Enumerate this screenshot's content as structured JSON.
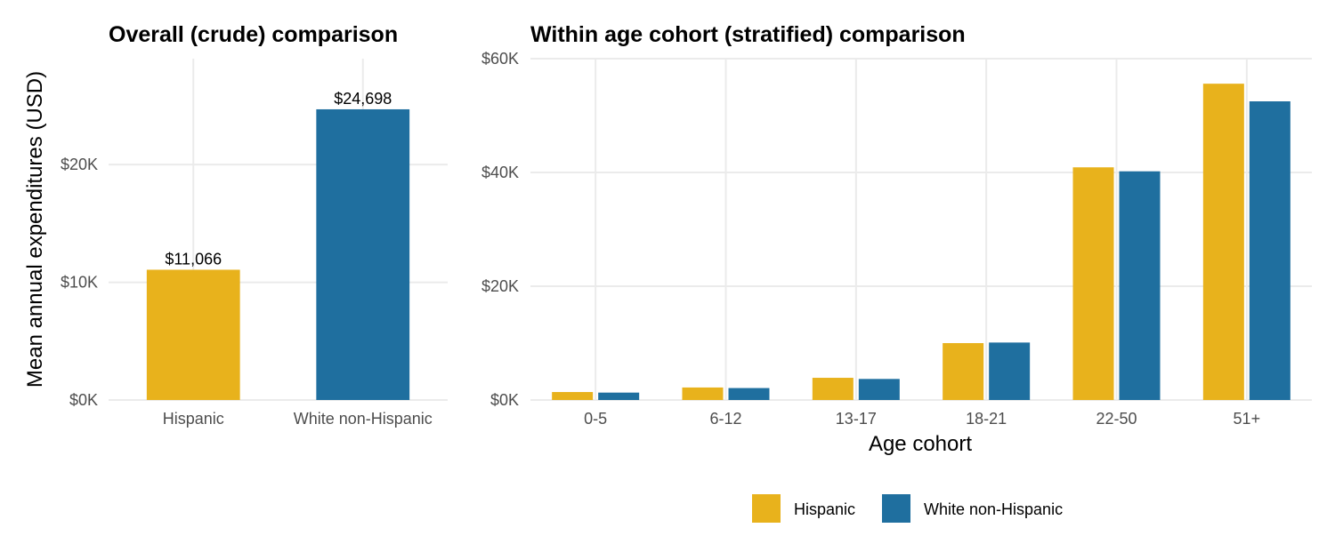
{
  "y_axis_title": "Mean annual expenditures (USD)",
  "colors": {
    "hispanic": "#E8B21C",
    "white_non_hispanic": "#1F6F9F"
  },
  "chart_data": [
    {
      "type": "bar",
      "title": "Overall (crude) comparison",
      "categories": [
        "Hispanic",
        "White non-Hispanic"
      ],
      "values": [
        11066,
        24698
      ],
      "data_labels": [
        "$11,066",
        "$24,698"
      ],
      "ylim": [
        0,
        29000
      ],
      "y_ticks": [
        0,
        10000,
        20000
      ],
      "y_tick_labels": [
        "$0K",
        "$10K",
        "$20K"
      ],
      "grid": true
    },
    {
      "type": "bar",
      "title": "Within age cohort (stratified) comparison",
      "xlabel": "Age cohort",
      "categories": [
        "0-5",
        "6-12",
        "13-17",
        "18-21",
        "22-50",
        "51+"
      ],
      "series": [
        {
          "name": "Hispanic",
          "values": [
            1400,
            2200,
            3900,
            10000,
            40900,
            55600
          ]
        },
        {
          "name": "White non-Hispanic",
          "values": [
            1300,
            2100,
            3700,
            10100,
            40200,
            52500
          ]
        }
      ],
      "ylim": [
        0,
        60000
      ],
      "y_ticks": [
        0,
        20000,
        40000,
        60000
      ],
      "y_tick_labels": [
        "$0K",
        "$20K",
        "$40K",
        "$60K"
      ],
      "grid": true,
      "legend_position": "bottom"
    }
  ]
}
